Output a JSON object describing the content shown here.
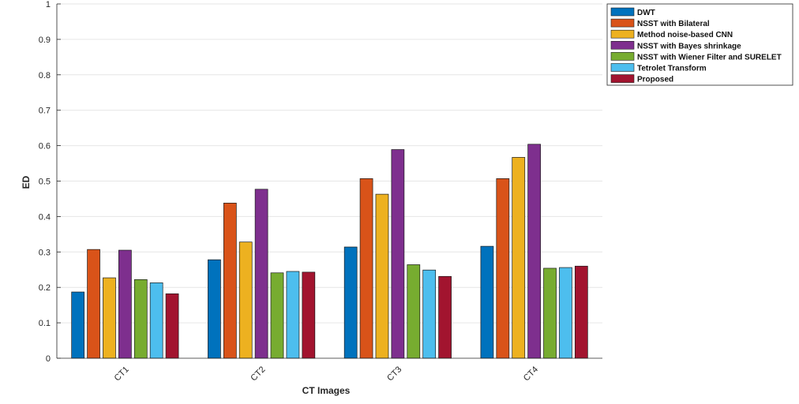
{
  "chart_data": {
    "type": "bar",
    "title": "",
    "xlabel": "CT Images",
    "ylabel": "ED",
    "ylim": [
      0,
      1
    ],
    "yticks": [
      "0",
      "0.1",
      "0.2",
      "0.3",
      "0.4",
      "0.5",
      "0.6",
      "0.7",
      "0.8",
      "0.9",
      "1"
    ],
    "grid": true,
    "legend_position": "top-right",
    "categories": [
      "CT1",
      "CT2",
      "CT3",
      "CT4"
    ],
    "series": [
      {
        "name": "DWT",
        "color": "#0072BD",
        "values": [
          0.187,
          0.278,
          0.314,
          0.316
        ]
      },
      {
        "name": "NSST with Bilateral",
        "color": "#D95319",
        "values": [
          0.307,
          0.438,
          0.507,
          0.507
        ]
      },
      {
        "name": "Method noise-based CNN",
        "color": "#EDB120",
        "values": [
          0.227,
          0.328,
          0.463,
          0.567
        ]
      },
      {
        "name": "NSST with Bayes shrinkage",
        "color": "#7E2F8E",
        "values": [
          0.305,
          0.477,
          0.589,
          0.604
        ]
      },
      {
        "name": "NSST with Wiener Filter and SURELET",
        "color": "#77AC30",
        "values": [
          0.222,
          0.241,
          0.264,
          0.254
        ]
      },
      {
        "name": "Tetrolet Transform",
        "color": "#4DBEEE",
        "values": [
          0.213,
          0.245,
          0.249,
          0.256
        ]
      },
      {
        "name": "Proposed",
        "color": "#A2142F",
        "values": [
          0.182,
          0.243,
          0.231,
          0.26
        ]
      }
    ]
  }
}
